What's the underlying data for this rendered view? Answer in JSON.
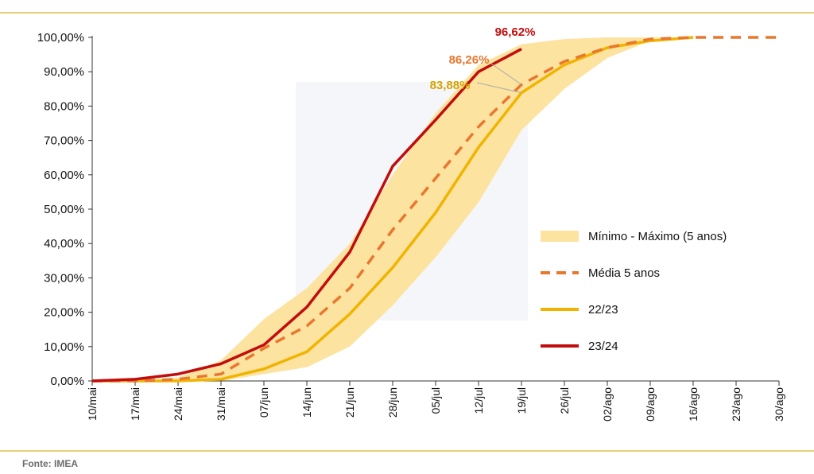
{
  "source": "Fonte: IMEA",
  "chart_data": {
    "type": "line",
    "categories": [
      "10/mai",
      "17/mai",
      "24/mai",
      "31/mai",
      "07/jun",
      "14/jun",
      "21/jun",
      "28/jun",
      "05/jul",
      "12/jul",
      "19/jul",
      "26/jul",
      "02/ago",
      "09/ago",
      "16/ago",
      "23/ago",
      "30/ago"
    ],
    "ylim": [
      0,
      100
    ],
    "yticks": [
      "0,00%",
      "10,00%",
      "20,00%",
      "30,00%",
      "40,00%",
      "50,00%",
      "60,00%",
      "70,00%",
      "80,00%",
      "90,00%",
      "100,00%"
    ],
    "band": {
      "name": "Mínimo - Máximo (5 anos)",
      "color": "#fde3a0",
      "min": [
        0,
        0,
        0,
        0,
        2,
        4,
        10,
        22,
        36,
        52,
        73,
        85,
        94,
        99,
        100,
        null,
        null
      ],
      "max": [
        0,
        0,
        1,
        6,
        18,
        27,
        40,
        60,
        78,
        92,
        98,
        99.5,
        100,
        100,
        100,
        null,
        null
      ]
    },
    "series": [
      {
        "name": "Média 5 anos",
        "color": "#e9772e",
        "dash": true,
        "values": [
          0,
          0,
          0.5,
          2,
          9.5,
          16,
          27,
          44,
          59,
          74,
          86.26,
          93,
          97,
          99.5,
          100,
          100,
          100
        ]
      },
      {
        "name": "22/23",
        "color": "#f0b400",
        "dash": false,
        "values": [
          0,
          0,
          0,
          0.5,
          3.5,
          8.5,
          19.5,
          33,
          49,
          68,
          83.88,
          92,
          97,
          99,
          100,
          null,
          null
        ]
      },
      {
        "name": "23/24",
        "color": "#c10d0d",
        "dash": false,
        "values": [
          0,
          0.5,
          2,
          5,
          10.5,
          21.5,
          37.5,
          62.5,
          76,
          90,
          96.62,
          null,
          null,
          null,
          null,
          null,
          null
        ]
      }
    ],
    "annotations": [
      {
        "text": "96,62%",
        "color": "#c10d0d"
      },
      {
        "text": "86,26%",
        "color": "#e9772e"
      },
      {
        "text": "83,88%",
        "color": "#d4a400"
      }
    ],
    "legend_position": "right"
  }
}
